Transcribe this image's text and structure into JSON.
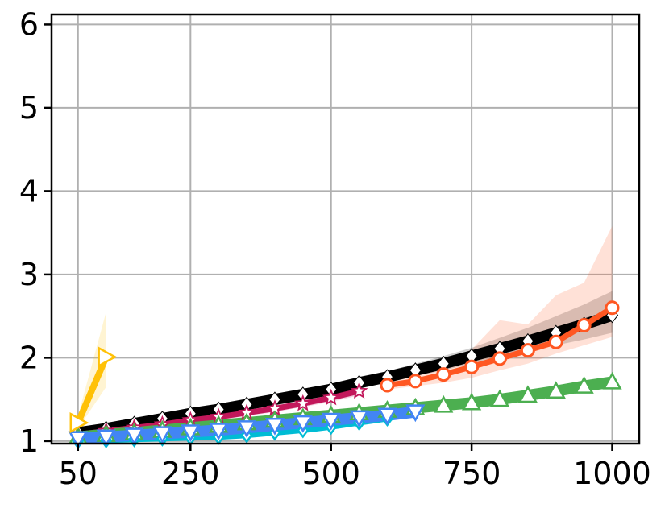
{
  "chart_data": {
    "type": "line",
    "title": "",
    "xlabel": "",
    "ylabel": "",
    "xlim": [
      3,
      1048
    ],
    "ylim": [
      0.97,
      6.12
    ],
    "x_ticks": [
      50,
      250,
      500,
      750,
      1000
    ],
    "y_ticks": [
      1,
      2,
      3,
      4,
      5,
      6
    ],
    "x_tick_labels": [
      "50",
      "250",
      "500",
      "750",
      "1000"
    ],
    "y_tick_labels": [
      "1",
      "2",
      "3",
      "4",
      "5",
      "6"
    ],
    "grid": true,
    "series": [
      {
        "color": "#000000",
        "marker": "diamond",
        "line_width": 14,
        "x": [
          50,
          100,
          150,
          200,
          250,
          300,
          350,
          400,
          450,
          500,
          550,
          600,
          650,
          700,
          750,
          800,
          850,
          900,
          950,
          1000
        ],
        "y": [
          1.1,
          1.15,
          1.21,
          1.27,
          1.33,
          1.38,
          1.44,
          1.5,
          1.56,
          1.62,
          1.7,
          1.77,
          1.85,
          1.93,
          2.02,
          2.11,
          2.2,
          2.3,
          2.4,
          2.51
        ],
        "band_upper": [
          1.12,
          1.18,
          1.24,
          1.3,
          1.36,
          1.42,
          1.48,
          1.54,
          1.61,
          1.68,
          1.76,
          1.84,
          1.93,
          2.02,
          2.12,
          2.24,
          2.36,
          2.5,
          2.64,
          2.8
        ],
        "band_lower": [
          1.08,
          1.12,
          1.18,
          1.24,
          1.3,
          1.35,
          1.41,
          1.47,
          1.52,
          1.58,
          1.65,
          1.71,
          1.78,
          1.85,
          1.93,
          2.0,
          2.08,
          2.15,
          2.22,
          2.3
        ]
      },
      {
        "color": "#ff5722",
        "marker": "circle",
        "line_width": 7,
        "x": [
          600,
          650,
          700,
          750,
          800,
          850,
          900,
          950,
          1000
        ],
        "y": [
          1.67,
          1.72,
          1.8,
          1.89,
          1.99,
          2.09,
          2.19,
          2.39,
          2.6
        ],
        "band_upper": [
          1.72,
          1.8,
          1.95,
          2.1,
          2.45,
          2.4,
          2.75,
          2.9,
          3.58
        ],
        "band_lower": [
          1.62,
          1.66,
          1.7,
          1.76,
          1.85,
          1.93,
          2.05,
          2.15,
          2.25
        ]
      },
      {
        "color": "#c2185b",
        "marker": "star",
        "line_width": 7,
        "x": [
          50,
          100,
          150,
          200,
          250,
          300,
          350,
          400,
          450,
          500,
          550
        ],
        "y": [
          1.08,
          1.12,
          1.16,
          1.2,
          1.25,
          1.29,
          1.34,
          1.39,
          1.45,
          1.52,
          1.6
        ],
        "band_upper": [
          1.1,
          1.15,
          1.19,
          1.23,
          1.28,
          1.33,
          1.38,
          1.43,
          1.49,
          1.57,
          1.65
        ],
        "band_lower": [
          1.06,
          1.09,
          1.13,
          1.17,
          1.22,
          1.25,
          1.3,
          1.35,
          1.41,
          1.47,
          1.55
        ]
      },
      {
        "color": "#4caf50",
        "marker": "triangle-up",
        "line_width": 14,
        "x": [
          50,
          100,
          150,
          200,
          250,
          300,
          350,
          400,
          450,
          500,
          550,
          600,
          650,
          700,
          750,
          800,
          850,
          900,
          950,
          1000
        ],
        "y": [
          1.05,
          1.08,
          1.1,
          1.13,
          1.16,
          1.19,
          1.22,
          1.25,
          1.28,
          1.31,
          1.34,
          1.37,
          1.4,
          1.43,
          1.46,
          1.5,
          1.55,
          1.6,
          1.66,
          1.71
        ],
        "band_upper": [
          1.07,
          1.1,
          1.13,
          1.16,
          1.19,
          1.22,
          1.25,
          1.28,
          1.31,
          1.34,
          1.37,
          1.4,
          1.43,
          1.47,
          1.5,
          1.54,
          1.59,
          1.64,
          1.7,
          1.76
        ],
        "band_lower": [
          1.03,
          1.06,
          1.08,
          1.11,
          1.13,
          1.16,
          1.19,
          1.22,
          1.25,
          1.28,
          1.31,
          1.34,
          1.37,
          1.4,
          1.43,
          1.46,
          1.51,
          1.56,
          1.61,
          1.66
        ]
      },
      {
        "color": "#00bcd4",
        "marker": "diamond-open",
        "line_width": 7,
        "x": [
          50,
          100,
          150,
          200,
          250,
          300,
          350,
          400,
          450,
          500,
          550,
          600
        ],
        "y": [
          1.0,
          1.01,
          1.02,
          1.03,
          1.04,
          1.05,
          1.07,
          1.1,
          1.13,
          1.17,
          1.22,
          1.27
        ],
        "band_upper": [
          1.01,
          1.02,
          1.03,
          1.04,
          1.05,
          1.07,
          1.09,
          1.12,
          1.15,
          1.19,
          1.24,
          1.29
        ],
        "band_lower": [
          0.99,
          1.0,
          1.01,
          1.02,
          1.03,
          1.04,
          1.05,
          1.08,
          1.11,
          1.15,
          1.2,
          1.25
        ]
      },
      {
        "color": "#4285f4",
        "marker": "triangle-down",
        "line_width": 14,
        "x": [
          50,
          100,
          150,
          200,
          250,
          300,
          350,
          400,
          450,
          500,
          550,
          600,
          650
        ],
        "y": [
          1.03,
          1.05,
          1.07,
          1.09,
          1.11,
          1.13,
          1.16,
          1.19,
          1.22,
          1.25,
          1.28,
          1.31,
          1.35
        ],
        "band_upper": [
          1.05,
          1.07,
          1.09,
          1.11,
          1.13,
          1.15,
          1.18,
          1.21,
          1.24,
          1.27,
          1.3,
          1.33,
          1.37
        ],
        "band_lower": [
          1.01,
          1.03,
          1.05,
          1.07,
          1.09,
          1.11,
          1.14,
          1.17,
          1.2,
          1.23,
          1.26,
          1.29,
          1.33
        ]
      },
      {
        "color": "#ffc107",
        "marker": "triangle-right",
        "line_width": 8,
        "x": [
          50,
          100
        ],
        "y": [
          1.22,
          2.01
        ],
        "band_upper": [
          1.3,
          2.55
        ],
        "band_lower": [
          1.15,
          1.65
        ]
      }
    ]
  }
}
